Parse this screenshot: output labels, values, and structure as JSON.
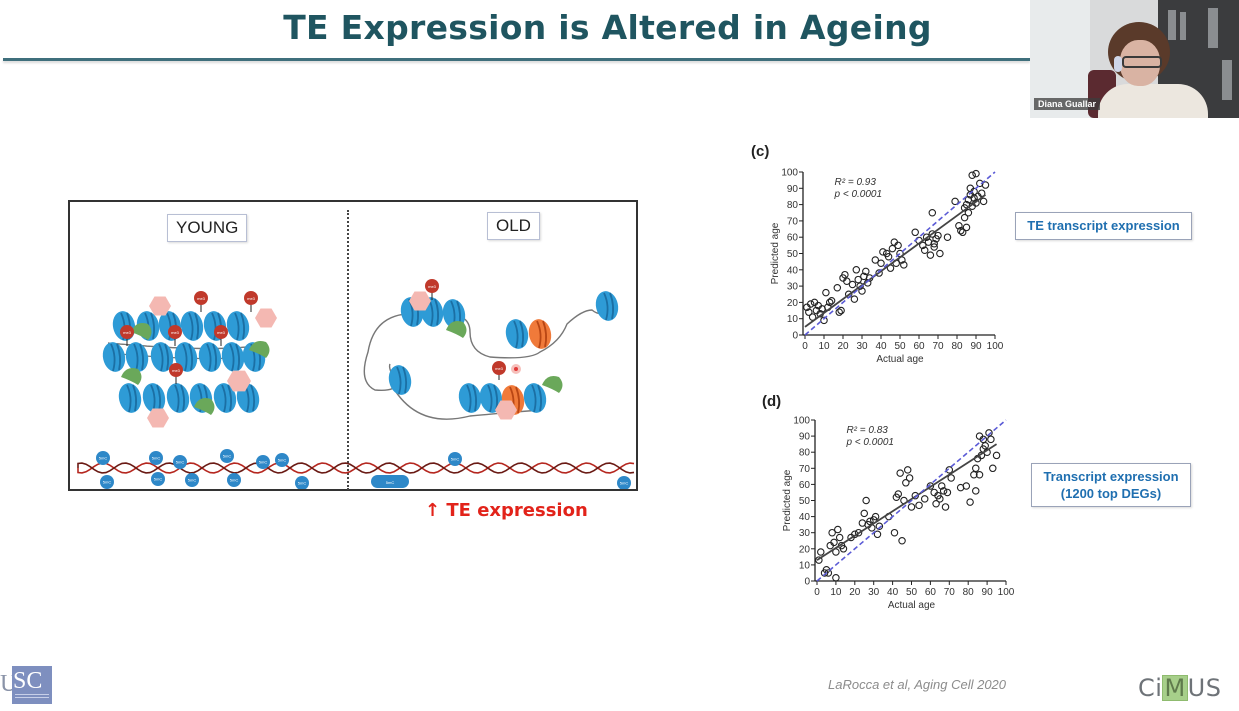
{
  "slide": {
    "title": "TE Expression is Altered in Ageing",
    "citation": "LaRocca et al, Aging Cell 2020"
  },
  "video": {
    "participant_name": "Diana Guallar"
  },
  "diagram": {
    "left_label": "YOUNG",
    "right_label": "OLD",
    "result_label": "↑ TE expression",
    "marker_label": "me3",
    "dna_marker_label": "5mC"
  },
  "logos": {
    "left": {
      "u": "U",
      "sc": "SC"
    },
    "right": {
      "pre": "Ci",
      "mid": "M",
      "post": "US"
    }
  },
  "callouts": {
    "c": "TE transcript expression",
    "d_line1": "Transcript expression",
    "d_line2": "(1200 top DEGs)"
  },
  "colors": {
    "title": "#1f5560",
    "accent_red": "#e2231a",
    "callout_text": "#1f6fb0",
    "nucleosome": "#2e9bd6",
    "identity_line": "#5a5ad6"
  },
  "chart_data": [
    {
      "type": "scatter",
      "panel": "(c)",
      "title": "",
      "xlabel": "Actual age",
      "ylabel": "Predicted age",
      "xlim": [
        0,
        100
      ],
      "ylim": [
        0,
        100
      ],
      "xticks": [
        0,
        10,
        20,
        30,
        40,
        50,
        60,
        70,
        80,
        90,
        100
      ],
      "yticks": [
        0,
        10,
        20,
        30,
        40,
        50,
        60,
        70,
        80,
        90,
        100
      ],
      "annotations": {
        "r2": "R² = 0.93",
        "p": "p < 0.0001"
      },
      "fit_line": {
        "x": [
          0,
          95
        ],
        "y": [
          5,
          86
        ]
      },
      "identity_line": {
        "x": [
          0,
          100
        ],
        "y": [
          0,
          100
        ]
      },
      "points": [
        [
          1,
          17
        ],
        [
          2,
          14
        ],
        [
          3,
          19
        ],
        [
          4,
          11
        ],
        [
          5,
          20
        ],
        [
          6,
          15
        ],
        [
          7,
          18
        ],
        [
          8,
          13
        ],
        [
          9,
          16
        ],
        [
          10,
          9
        ],
        [
          11,
          26
        ],
        [
          12,
          17
        ],
        [
          13,
          20
        ],
        [
          14,
          21
        ],
        [
          17,
          29
        ],
        [
          18,
          14
        ],
        [
          19,
          15
        ],
        [
          20,
          35
        ],
        [
          21,
          37
        ],
        [
          22,
          33
        ],
        [
          23,
          25
        ],
        [
          25,
          31
        ],
        [
          26,
          22
        ],
        [
          27,
          40
        ],
        [
          28,
          34
        ],
        [
          29,
          30
        ],
        [
          30,
          27
        ],
        [
          31,
          36
        ],
        [
          32,
          39
        ],
        [
          33,
          32
        ],
        [
          34,
          35
        ],
        [
          37,
          46
        ],
        [
          39,
          38
        ],
        [
          40,
          44
        ],
        [
          41,
          51
        ],
        [
          43,
          50
        ],
        [
          44,
          48
        ],
        [
          45,
          41
        ],
        [
          46,
          53
        ],
        [
          47,
          57
        ],
        [
          48,
          44
        ],
        [
          49,
          55
        ],
        [
          50,
          50
        ],
        [
          51,
          46
        ],
        [
          52,
          43
        ],
        [
          58,
          63
        ],
        [
          60,
          58
        ],
        [
          62,
          55
        ],
        [
          63,
          52
        ],
        [
          64,
          60
        ],
        [
          65,
          57
        ],
        [
          66,
          49
        ],
        [
          67,
          75
        ],
        [
          67,
          62
        ],
        [
          68,
          56
        ],
        [
          68,
          54
        ],
        [
          69,
          59
        ],
        [
          70,
          61
        ],
        [
          71,
          50
        ],
        [
          75,
          60
        ],
        [
          79,
          82
        ],
        [
          81,
          67
        ],
        [
          82,
          64
        ],
        [
          83,
          63
        ],
        [
          84,
          72
        ],
        [
          84,
          78
        ],
        [
          85,
          80
        ],
        [
          85,
          66
        ],
        [
          86,
          83
        ],
        [
          86,
          75
        ],
        [
          87,
          86
        ],
        [
          87,
          90
        ],
        [
          88,
          98
        ],
        [
          88,
          79
        ],
        [
          89,
          88
        ],
        [
          89,
          84
        ],
        [
          90,
          99
        ],
        [
          90,
          81
        ],
        [
          91,
          85
        ],
        [
          92,
          93
        ],
        [
          93,
          87
        ],
        [
          94,
          82
        ],
        [
          95,
          92
        ]
      ]
    },
    {
      "type": "scatter",
      "panel": "(d)",
      "title": "",
      "xlabel": "Actual age",
      "ylabel": "Predicted age",
      "xlim": [
        0,
        100
      ],
      "ylim": [
        0,
        100
      ],
      "xticks": [
        0,
        10,
        20,
        30,
        40,
        50,
        60,
        70,
        80,
        90,
        100
      ],
      "yticks": [
        0,
        10,
        20,
        30,
        40,
        50,
        60,
        70,
        80,
        90,
        100
      ],
      "annotations": {
        "r2": "R² = 0.83",
        "p": "p < 0.0001"
      },
      "fit_line": {
        "x": [
          0,
          95
        ],
        "y": [
          13,
          85
        ]
      },
      "identity_line": {
        "x": [
          0,
          100
        ],
        "y": [
          0,
          100
        ]
      },
      "points": [
        [
          1,
          13
        ],
        [
          2,
          18
        ],
        [
          4,
          5
        ],
        [
          5,
          7
        ],
        [
          6,
          5
        ],
        [
          7,
          22
        ],
        [
          8,
          30
        ],
        [
          9,
          24
        ],
        [
          10,
          2
        ],
        [
          10,
          18
        ],
        [
          11,
          32
        ],
        [
          12,
          27
        ],
        [
          13,
          22
        ],
        [
          14,
          20
        ],
        [
          18,
          27
        ],
        [
          20,
          29
        ],
        [
          22,
          30
        ],
        [
          24,
          36
        ],
        [
          25,
          42
        ],
        [
          26,
          50
        ],
        [
          27,
          35
        ],
        [
          28,
          37
        ],
        [
          29,
          33
        ],
        [
          30,
          38
        ],
        [
          31,
          40
        ],
        [
          32,
          29
        ],
        [
          33,
          34
        ],
        [
          38,
          40
        ],
        [
          41,
          30
        ],
        [
          42,
          52
        ],
        [
          43,
          54
        ],
        [
          44,
          67
        ],
        [
          45,
          25
        ],
        [
          46,
          50
        ],
        [
          47,
          61
        ],
        [
          48,
          69
        ],
        [
          49,
          64
        ],
        [
          50,
          46
        ],
        [
          52,
          53
        ],
        [
          54,
          47
        ],
        [
          57,
          51
        ],
        [
          60,
          59
        ],
        [
          62,
          55
        ],
        [
          63,
          48
        ],
        [
          64,
          53
        ],
        [
          65,
          51
        ],
        [
          66,
          59
        ],
        [
          67,
          56
        ],
        [
          68,
          46
        ],
        [
          69,
          55
        ],
        [
          70,
          69
        ],
        [
          71,
          64
        ],
        [
          76,
          58
        ],
        [
          79,
          59
        ],
        [
          81,
          49
        ],
        [
          83,
          66
        ],
        [
          84,
          56
        ],
        [
          84,
          70
        ],
        [
          85,
          76
        ],
        [
          86,
          90
        ],
        [
          86,
          66
        ],
        [
          87,
          78
        ],
        [
          88,
          88
        ],
        [
          88,
          82
        ],
        [
          89,
          84
        ],
        [
          90,
          80
        ],
        [
          91,
          92
        ],
        [
          92,
          88
        ],
        [
          93,
          70
        ],
        [
          95,
          78
        ]
      ]
    }
  ]
}
